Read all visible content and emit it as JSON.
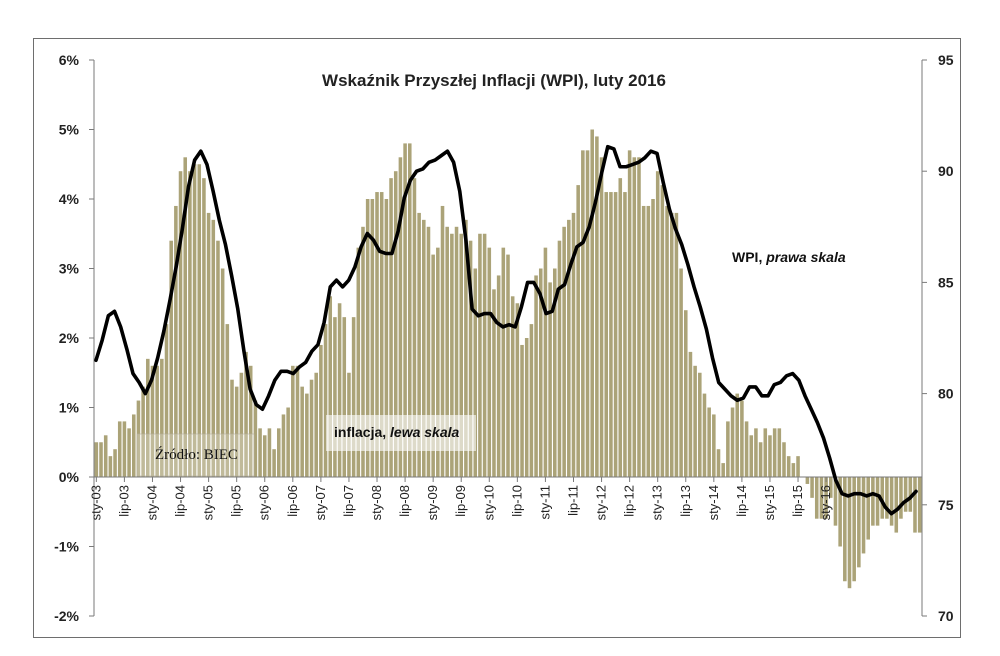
{
  "chart_data": {
    "type": "bar+line",
    "title": "Wskaźnik Przyszłej Inflacji (WPI), luty 2016",
    "source": "Źródło: BIEC",
    "left_axis": {
      "ticks": [
        "-2%",
        "-1%",
        "0%",
        "1%",
        "2%",
        "3%",
        "4%",
        "5%",
        "6%"
      ],
      "ylim": [
        -2,
        6
      ]
    },
    "right_axis": {
      "ticks": [
        "70",
        "75",
        "80",
        "85",
        "90",
        "95"
      ],
      "ylim": [
        70,
        95
      ]
    },
    "x_ticks": [
      "sty-03",
      "lip-03",
      "sty-04",
      "lip-04",
      "sty-05",
      "lip-05",
      "sty-06",
      "lip-06",
      "sty-07",
      "lip-07",
      "sty-08",
      "lip-08",
      "sty-09",
      "lip-09",
      "sty-10",
      "lip-10",
      "sty-11",
      "lip-11",
      "sty-12",
      "lip-12",
      "sty-13",
      "lip-13",
      "sty-14",
      "lip-14",
      "sty-15",
      "lip-15",
      "sty-16"
    ],
    "annotations": {
      "inflation_label": "inflacja,",
      "inflation_label_it": "lewa skala",
      "wpi_label": "WPI,",
      "wpi_label_it": "prawa skala"
    },
    "series": [
      {
        "name": "inflacja",
        "kind": "bar",
        "axis": "left",
        "color": "#aba378",
        "values": [
          0.5,
          0.5,
          0.6,
          0.3,
          0.4,
          0.8,
          0.8,
          0.7,
          0.9,
          1.1,
          1.3,
          1.7,
          1.6,
          1.6,
          1.7,
          2.2,
          3.4,
          3.9,
          4.4,
          4.6,
          4.4,
          4.5,
          4.5,
          4.3,
          3.8,
          3.7,
          3.4,
          3.0,
          2.2,
          1.4,
          1.3,
          1.5,
          1.8,
          1.6,
          1.1,
          0.7,
          0.6,
          0.7,
          0.4,
          0.7,
          0.9,
          1.0,
          1.6,
          1.6,
          1.3,
          1.2,
          1.4,
          1.5,
          1.9,
          2.2,
          2.6,
          2.3,
          2.5,
          2.3,
          1.5,
          2.3,
          3.3,
          3.6,
          4.0,
          4.0,
          4.1,
          4.1,
          4.0,
          4.3,
          4.4,
          4.6,
          4.8,
          4.8,
          4.3,
          3.8,
          3.7,
          3.6,
          3.2,
          3.3,
          3.9,
          3.6,
          3.5,
          3.6,
          3.5,
          3.7,
          3.4,
          3.0,
          3.5,
          3.5,
          3.3,
          2.7,
          2.9,
          3.3,
          3.2,
          2.6,
          2.5,
          1.9,
          2.0,
          2.2,
          2.9,
          3.0,
          3.3,
          2.8,
          3.0,
          3.4,
          3.6,
          3.7,
          3.8,
          4.2,
          4.7,
          4.7,
          5.0,
          4.9,
          4.6,
          4.1,
          4.1,
          4.1,
          4.3,
          4.1,
          4.7,
          4.6,
          4.6,
          3.9,
          3.9,
          4.0,
          4.4,
          4.2,
          3.9,
          3.8,
          3.8,
          3.0,
          2.4,
          1.8,
          1.6,
          1.5,
          1.2,
          1.0,
          0.9,
          0.4,
          0.2,
          0.8,
          1.0,
          1.2,
          1.1,
          0.8,
          0.6,
          0.7,
          0.5,
          0.7,
          0.6,
          0.7,
          0.7,
          0.5,
          0.3,
          0.2,
          0.3,
          0.0,
          -0.1,
          -0.3,
          -0.6,
          -0.6,
          -0.6,
          -0.3,
          -0.7,
          -1.0,
          -1.5,
          -1.6,
          -1.5,
          -1.3,
          -1.1,
          -0.9,
          -0.7,
          -0.7,
          -0.6,
          -0.6,
          -0.7,
          -0.8,
          -0.6,
          -0.5,
          -0.5,
          -0.8,
          -0.8
        ]
      },
      {
        "name": "WPI",
        "kind": "line",
        "axis": "right",
        "color": "#000000",
        "values": [
          81.5,
          82.4,
          83.5,
          83.7,
          83.0,
          82.0,
          80.9,
          80.5,
          80.0,
          80.6,
          81.6,
          82.8,
          84.2,
          85.7,
          87.4,
          89.3,
          90.5,
          90.9,
          90.3,
          89.1,
          87.8,
          86.7,
          85.3,
          83.8,
          81.9,
          80.2,
          79.5,
          79.3,
          79.9,
          80.6,
          81.0,
          81.0,
          80.9,
          81.2,
          81.4,
          81.9,
          82.2,
          83.2,
          84.8,
          85.1,
          84.8,
          85.1,
          85.7,
          86.6,
          87.2,
          86.9,
          86.4,
          86.3,
          86.3,
          87.3,
          88.8,
          89.6,
          90.0,
          90.1,
          90.4,
          90.5,
          90.7,
          90.9,
          90.4,
          89.1,
          86.9,
          83.8,
          83.5,
          83.6,
          83.6,
          83.2,
          83.0,
          83.1,
          83.0,
          83.9,
          85.0,
          85.0,
          84.5,
          83.6,
          83.7,
          84.7,
          84.9,
          85.8,
          86.6,
          86.8,
          87.5,
          88.6,
          89.9,
          91.1,
          91.0,
          90.2,
          90.2,
          90.3,
          90.4,
          90.6,
          90.9,
          90.8,
          89.5,
          88.3,
          87.4,
          86.7,
          85.8,
          84.8,
          83.9,
          82.9,
          81.6,
          80.5,
          80.2,
          79.9,
          79.7,
          79.8,
          80.3,
          80.3,
          79.9,
          79.9,
          80.4,
          80.5,
          80.8,
          80.9,
          80.6,
          79.9,
          79.3,
          78.7,
          78.0,
          77.1,
          76.1,
          75.5,
          75.4,
          75.5,
          75.5,
          75.4,
          75.5,
          75.4,
          74.9,
          74.6,
          74.8,
          75.1,
          75.3,
          75.6
        ]
      }
    ]
  }
}
